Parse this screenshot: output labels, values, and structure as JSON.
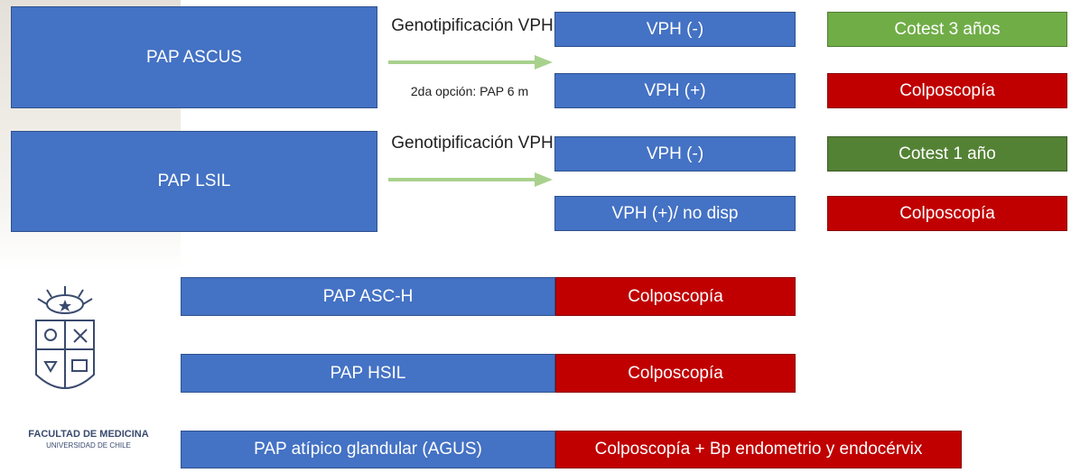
{
  "ascus": {
    "main": "PAP ASCUS",
    "test_label": "Genotipificación VPH",
    "alt_label": "2da opción: PAP 6 m",
    "neg": "VPH (-)",
    "pos": "VPH (+)",
    "neg_result": "Cotest 3 años",
    "pos_result": "Colposcopía"
  },
  "lsil": {
    "main": "PAP LSIL",
    "test_label": "Genotipificación VPH",
    "neg": "VPH (-)",
    "pos": "VPH (+)/ no disp",
    "neg_result": "Cotest 1 año",
    "pos_result": "Colposcopía"
  },
  "asch": {
    "main": "PAP ASC-H",
    "result": "Colposcopía"
  },
  "hsil": {
    "main": "PAP HSIL",
    "result": "Colposcopía"
  },
  "agus": {
    "main": "PAP atípico glandular (AGUS)",
    "result": "Colposcopía + Bp endometrio y endocérvix"
  },
  "logo": {
    "line1": "FACULTAD DE MEDICINA",
    "line2": "UNIVERSIDAD DE CHILE"
  },
  "colors": {
    "blue": "#4472c4",
    "red": "#c00000",
    "green_light": "#70ad47",
    "green_dark": "#548235",
    "arrow": "#a9d18e"
  }
}
